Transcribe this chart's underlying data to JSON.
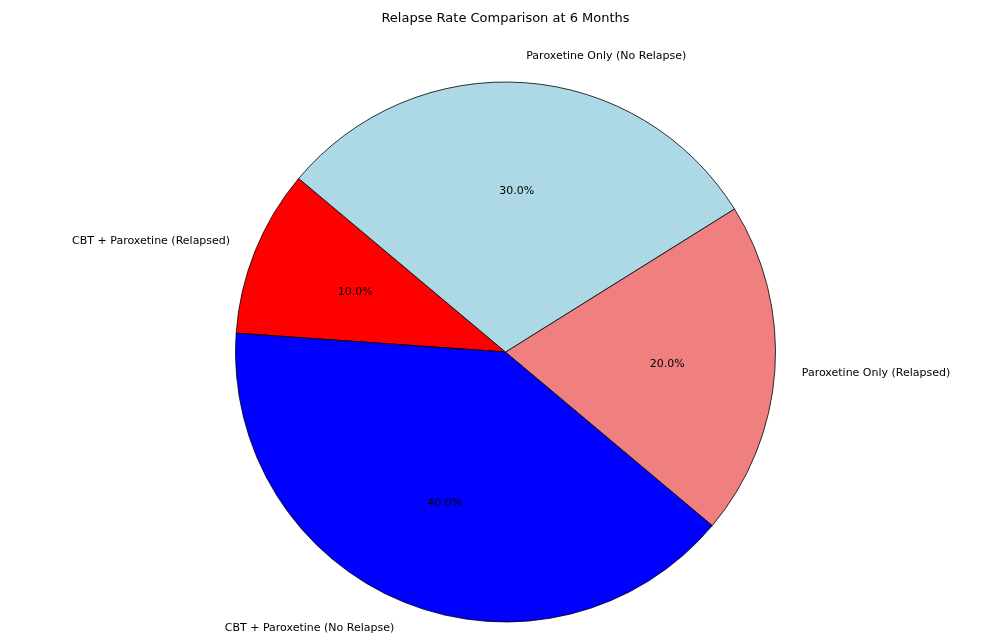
{
  "chart_data": {
    "type": "pie",
    "title": "Relapse Rate Comparison at 6 Months",
    "categories": [
      "CBT + Paroxetine (Relapsed)",
      "CBT + Paroxetine (No Relapse)",
      "Paroxetine Only (Relapsed)",
      "Paroxetine Only (No Relapse)"
    ],
    "values": [
      10,
      40,
      20,
      30
    ],
    "colors": [
      "#ff0000",
      "#0000ff",
      "#f08080",
      "#add8e6"
    ],
    "value_labels": [
      "10.0%",
      "40.0%",
      "20.0%",
      "30.0%"
    ]
  }
}
